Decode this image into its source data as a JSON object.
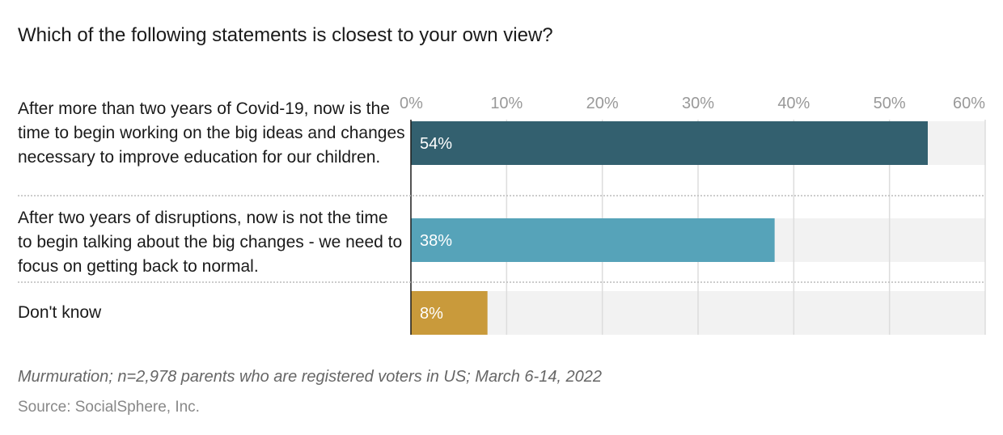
{
  "title": "Which of the following statements is closest to your own view?",
  "note": "Murmuration; n=2,978 parents who are registered voters in US; March 6-14, 2022",
  "source": "Source: SocialSphere, Inc.",
  "chart_data": {
    "type": "bar",
    "orientation": "horizontal",
    "categories": [
      "After more than two years of Covid-19, now is the time to begin working on the big ideas and changes necessary to improve education for our children.",
      "After two years of disruptions, now is not the time to begin talking about the big changes - we need to focus on getting back to normal.",
      "Don't know"
    ],
    "values": [
      54,
      38,
      8
    ],
    "data_labels": [
      "54%",
      "38%",
      "8%"
    ],
    "colors": [
      "#33606f",
      "#56a3b9",
      "#c99a3b"
    ],
    "xlim": [
      0,
      60
    ],
    "ticks": [
      0,
      10,
      20,
      30,
      40,
      50,
      60
    ],
    "tick_labels": [
      "0%",
      "10%",
      "20%",
      "30%",
      "40%",
      "50%",
      "60%"
    ],
    "grid": true,
    "axis_position": "top"
  }
}
